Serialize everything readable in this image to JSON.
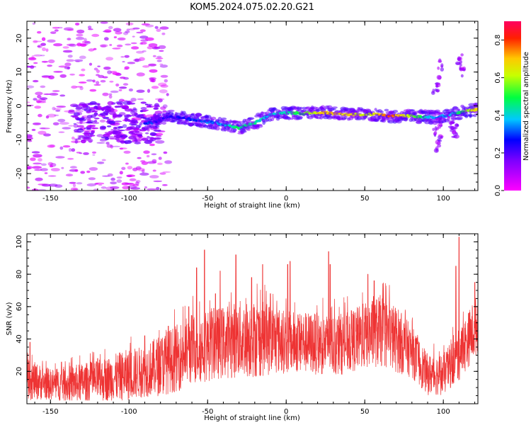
{
  "figure": {
    "title": "KOM5.2024.075.02.20.G21"
  },
  "chart_data": [
    {
      "type": "heatmap",
      "title": "KOM5.2024.075.02.20.G21",
      "xlabel": "Height of straight line (km)",
      "ylabel": "Frequency (Hz)",
      "xlim": [
        -165,
        122
      ],
      "ylim": [
        -25,
        25
      ],
      "xticks": [
        -150,
        -100,
        -50,
        0,
        50,
        100
      ],
      "yticks": [
        -20,
        -10,
        0,
        10,
        20
      ],
      "colorbar": {
        "label": "Normalized spectral amplitude",
        "range": [
          0,
          0.9
        ],
        "ticks": [
          0.0,
          0.2,
          0.4,
          0.6,
          0.8
        ],
        "colormap": "gist_rainbow_r",
        "placement": "right"
      },
      "ridge": {
        "description_points": [
          {
            "x": -85,
            "y": -5,
            "amp": 0.22
          },
          {
            "x": -75,
            "y": -3,
            "amp": 0.25
          },
          {
            "x": -60,
            "y": -4,
            "amp": 0.3
          },
          {
            "x": -45,
            "y": -5,
            "amp": 0.35
          },
          {
            "x": -30,
            "y": -6.5,
            "amp": 0.5
          },
          {
            "x": -20,
            "y": -5,
            "amp": 0.45
          },
          {
            "x": -10,
            "y": -2.5,
            "amp": 0.4
          },
          {
            "x": 0,
            "y": -2,
            "amp": 0.45
          },
          {
            "x": 10,
            "y": -2.2,
            "amp": 0.55
          },
          {
            "x": 25,
            "y": -2,
            "amp": 0.75
          },
          {
            "x": 40,
            "y": -2.5,
            "amp": 0.7
          },
          {
            "x": 55,
            "y": -2.5,
            "amp": 0.65
          },
          {
            "x": 65,
            "y": -3,
            "amp": 0.85
          },
          {
            "x": 80,
            "y": -3,
            "amp": 0.6
          },
          {
            "x": 95,
            "y": -3.5,
            "amp": 0.35
          },
          {
            "x": 105,
            "y": -2.5,
            "amp": 0.4
          },
          {
            "x": 115,
            "y": -1.5,
            "amp": 0.6
          },
          {
            "x": 122,
            "y": -1,
            "amp": 0.75
          }
        ]
      },
      "grid": false
    },
    {
      "type": "line",
      "xlabel": "Height of straight line (km)",
      "ylabel": "SNR (v/v)",
      "xlim": [
        -165,
        122
      ],
      "ylim": [
        0,
        105
      ],
      "xticks": [
        -150,
        -100,
        -50,
        0,
        50,
        100
      ],
      "yticks": [
        20,
        40,
        60,
        80,
        100
      ],
      "color": "#ee3333",
      "envelope": {
        "x": [
          -165,
          -150,
          -140,
          -120,
          -110,
          -100,
          -90,
          -80,
          -70,
          -60,
          -50,
          -40,
          -30,
          -20,
          -10,
          0,
          10,
          20,
          30,
          40,
          50,
          60,
          70,
          80,
          90,
          100,
          110,
          122
        ],
        "center": [
          15,
          12,
          12,
          14,
          16,
          18,
          20,
          24,
          28,
          34,
          36,
          38,
          40,
          40,
          40,
          38,
          38,
          37,
          36,
          38,
          42,
          45,
          40,
          32,
          18,
          18,
          30,
          50
        ],
        "spread": [
          8,
          6,
          7,
          8,
          9,
          10,
          10,
          12,
          13,
          14,
          14,
          14,
          15,
          15,
          14,
          12,
          12,
          12,
          12,
          12,
          13,
          14,
          13,
          10,
          8,
          8,
          10,
          12
        ]
      },
      "peaks": [
        {
          "x": -163,
          "y": 38
        },
        {
          "x": -120,
          "y": 28
        },
        {
          "x": -90,
          "y": 42
        },
        {
          "x": -75,
          "y": 48
        },
        {
          "x": -62,
          "y": 60
        },
        {
          "x": -57,
          "y": 84
        },
        {
          "x": -52,
          "y": 95
        },
        {
          "x": -45,
          "y": 68
        },
        {
          "x": -42,
          "y": 82
        },
        {
          "x": -32,
          "y": 92
        },
        {
          "x": -22,
          "y": 78
        },
        {
          "x": -15,
          "y": 86
        },
        {
          "x": -10,
          "y": 68
        },
        {
          "x": 1,
          "y": 86
        },
        {
          "x": 2.5,
          "y": 88
        },
        {
          "x": 27,
          "y": 94
        },
        {
          "x": 28,
          "y": 86
        },
        {
          "x": 52,
          "y": 80
        },
        {
          "x": 56,
          "y": 76
        },
        {
          "x": 108,
          "y": 85
        },
        {
          "x": 110,
          "y": 103
        },
        {
          "x": 120,
          "y": 75
        }
      ],
      "grid": false
    }
  ]
}
